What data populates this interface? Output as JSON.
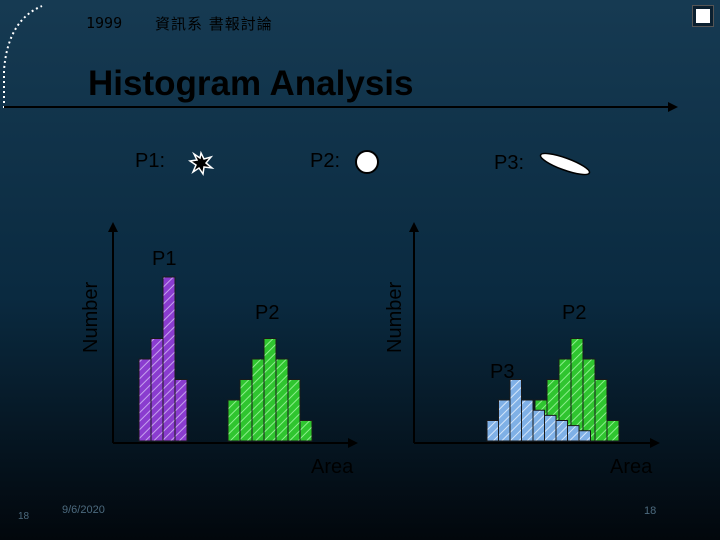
{
  "header": {
    "year": "1999",
    "department": "資訊系 書報討論"
  },
  "title": "Histogram Analysis",
  "particles": [
    {
      "label": "P1:",
      "icon": "starburst-particle-icon"
    },
    {
      "label": "P2:",
      "icon": "circle-particle-icon"
    },
    {
      "label": "P3:",
      "icon": "ellipse-particle-icon"
    }
  ],
  "chart_data": [
    {
      "type": "bar",
      "ylabel": "Number",
      "xlabel": "Area",
      "annotations": [
        "P1",
        "P2"
      ],
      "series": [
        {
          "name": "P1",
          "values": [
            4,
            5,
            8,
            3
          ],
          "color": "#8a3ccf"
        },
        {
          "name": "P2",
          "values": [
            2,
            3,
            4,
            5,
            4,
            3,
            1
          ],
          "color": "#33cc33"
        }
      ]
    },
    {
      "type": "bar",
      "ylabel": "Number",
      "xlabel": "Area",
      "annotations": [
        "P2",
        "P3"
      ],
      "series": [
        {
          "name": "P2",
          "values": [
            2,
            3,
            4,
            5,
            4,
            3,
            1
          ],
          "color": "#33cc33"
        },
        {
          "name": "P3",
          "values": [
            1,
            2,
            3,
            2,
            1.5,
            1.25,
            1,
            0.75,
            0.5
          ],
          "color": "#8ab8e8"
        }
      ]
    }
  ],
  "footer": {
    "slide_number": "18",
    "date": "9/6/2020",
    "page_number": "18"
  }
}
